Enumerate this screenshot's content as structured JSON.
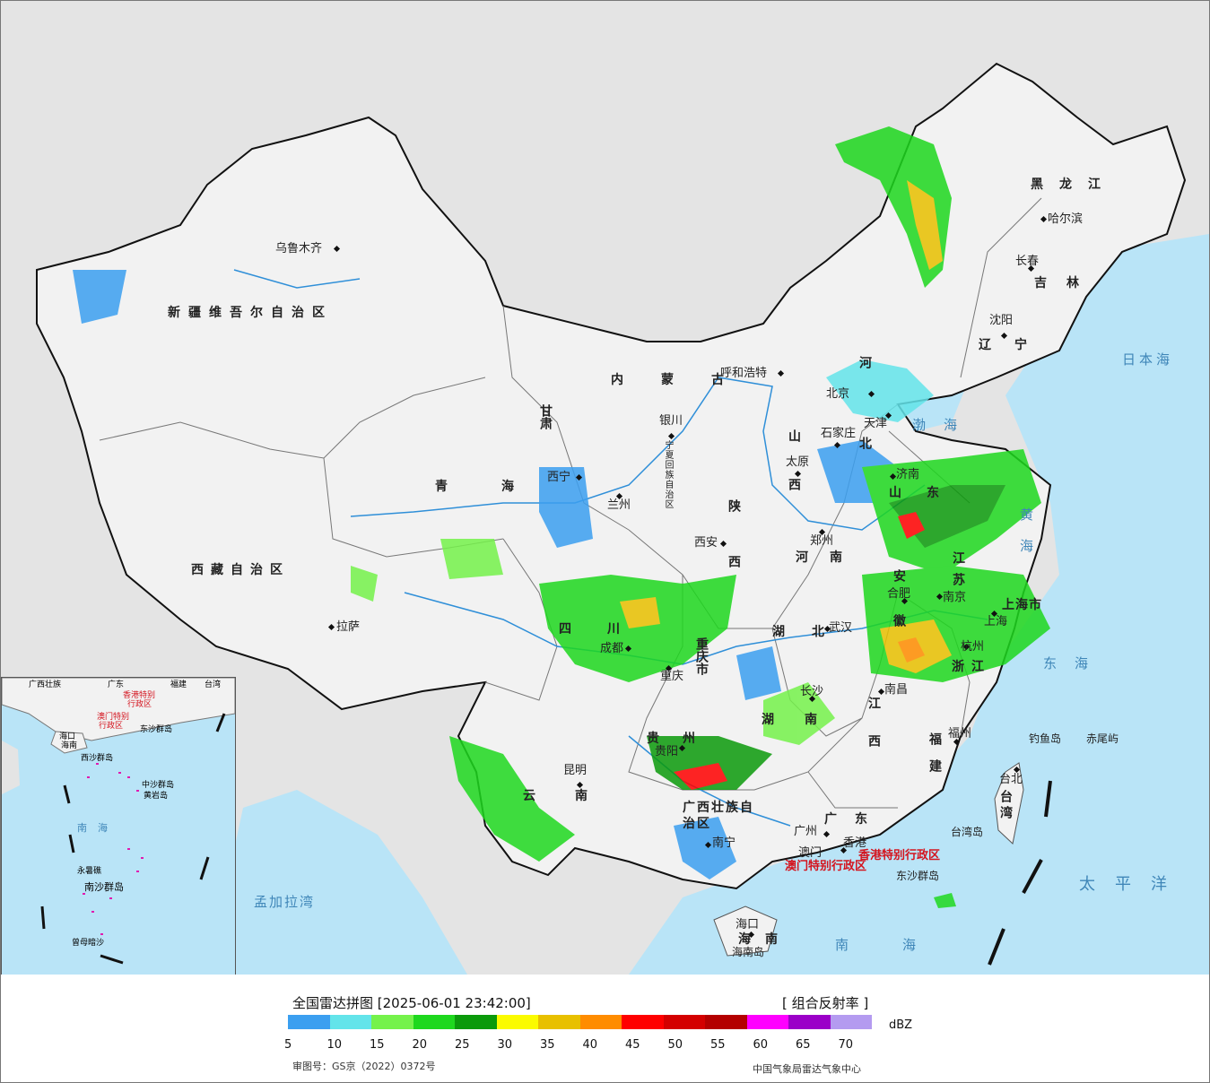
{
  "title": "全国雷达拼图 [2025-06-01 23:42:00]",
  "product": "[ 组合反射率 ]",
  "legend": {
    "unit": "dBZ",
    "ticks": [
      "5",
      "10",
      "15",
      "20",
      "25",
      "30",
      "35",
      "40",
      "45",
      "50",
      "55",
      "60",
      "65",
      "70"
    ],
    "colors": [
      "#3b9ff0",
      "#63e4ea",
      "#75f24b",
      "#1ed81e",
      "#0b9a0b",
      "#fbfb00",
      "#e8c000",
      "#ff8c00",
      "#ff0000",
      "#d40000",
      "#b40000",
      "#ff00ff",
      "#9b00c8",
      "#b49bf0"
    ]
  },
  "approval_number": "审图号：GS京（2022）0372号",
  "credit": "中国气象局雷达气象中心",
  "colors": {
    "land": "#f2f2f2",
    "foreign": "#e4e4e4",
    "sea": "#b9e4f7",
    "border": "#111111",
    "sea_label": "#3f86b8"
  },
  "map": {
    "cities": [
      "乌鲁木齐",
      "拉萨",
      "西宁",
      "兰州",
      "银川",
      "呼和浩特",
      "北京",
      "天津",
      "石家庄",
      "太原",
      "济南",
      "郑州",
      "西安",
      "成都",
      "重庆",
      "贵阳",
      "昆明",
      "南宁",
      "武汉",
      "长沙",
      "南昌",
      "合肥",
      "南京",
      "上海",
      "杭州",
      "福州",
      "广州",
      "香港",
      "澳门",
      "海口",
      "台北",
      "哈尔滨",
      "长春",
      "沈阳"
    ],
    "provinces": [
      "新疆维吾尔自治区",
      "西藏自治区",
      "青海",
      "甘肃",
      "内蒙古",
      "宁夏回族自治区",
      "陕西",
      "山西",
      "河北",
      "河南",
      "山东",
      "江苏",
      "安徽",
      "湖北",
      "湖南",
      "江西",
      "浙江",
      "福建",
      "广东",
      "四川",
      "重庆市",
      "贵州",
      "云南",
      "广西壮族自治区",
      "海南",
      "台湾",
      "黑龙江",
      "吉林",
      "辽宁",
      "上海市",
      "香港特别行政区",
      "澳门特别行政区"
    ],
    "seas": [
      "日本海",
      "渤海",
      "黄海",
      "东海",
      "太平洋",
      "南海",
      "孟加拉湾"
    ],
    "islands": [
      "钓鱼岛",
      "赤尾屿",
      "台湾岛",
      "东沙群岛",
      "海南岛"
    ]
  },
  "inset": {
    "labels": [
      "广西壮族",
      "广东",
      "福建",
      "台湾",
      "香港特别",
      "行政区",
      "澳门特别",
      "行政区",
      "东沙群岛",
      "海口",
      "海南",
      "西沙群岛",
      "中沙群岛",
      "黄岩岛",
      "南海",
      "永暑礁",
      "南沙群岛",
      "曾母暗沙"
    ]
  }
}
